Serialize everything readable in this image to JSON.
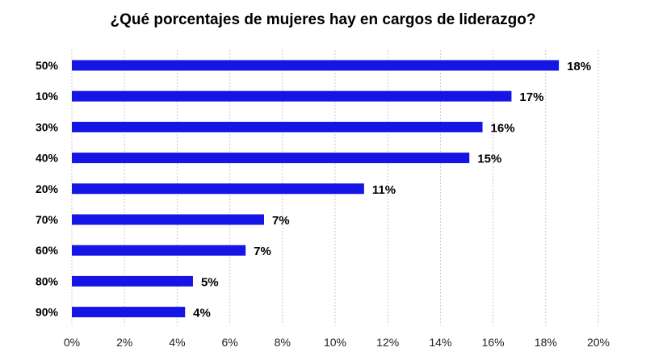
{
  "chart_data": {
    "type": "bar",
    "orientation": "horizontal",
    "title": "¿Qué porcentajes de mujeres hay en cargos de liderazgo?",
    "categories": [
      "50%",
      "10%",
      "30%",
      "40%",
      "20%",
      "70%",
      "60%",
      "80%",
      "90%"
    ],
    "values": [
      18.5,
      16.7,
      15.6,
      15.1,
      11.1,
      7.3,
      6.6,
      4.6,
      4.3
    ],
    "value_labels": [
      "18%",
      "17%",
      "16%",
      "15%",
      "11%",
      "7%",
      "7%",
      "5%",
      "4%"
    ],
    "xlim": [
      0,
      20
    ],
    "xticks": [
      "0%",
      "2%",
      "4%",
      "6%",
      "8%",
      "10%",
      "12%",
      "14%",
      "16%",
      "18%",
      "20%"
    ],
    "grid": "vertical dashed",
    "xlabel": "",
    "ylabel": "",
    "bar_color": "#1515e6"
  }
}
